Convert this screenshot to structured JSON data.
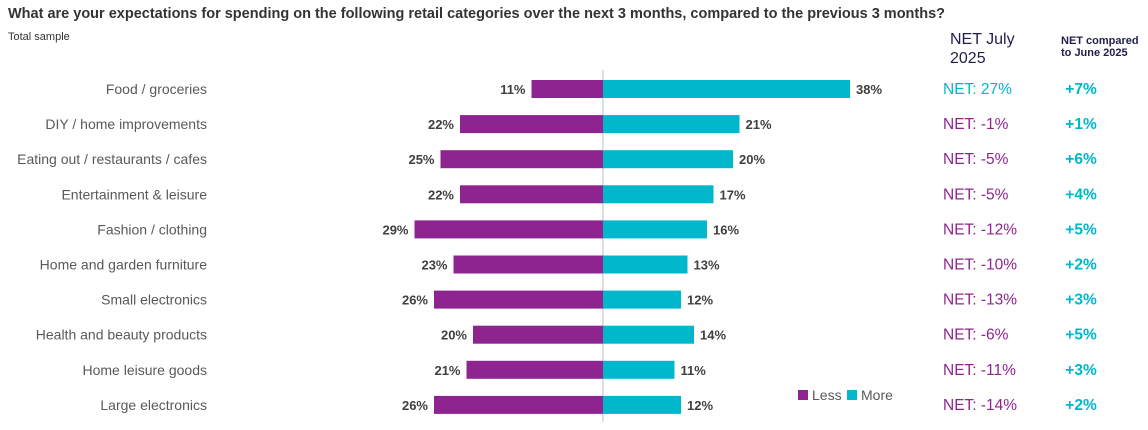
{
  "header": {
    "title": "What are your expectations for spending on the following retail categories over the next 3 months, compared to the previous 3 months?",
    "subtitle": "Total sample",
    "net_col_line1": "NET July",
    "net_col_line2": "2025",
    "cmp_col_line1": "NET compared",
    "cmp_col_line2": "to June 2025"
  },
  "colors": {
    "less": "#8e248f",
    "more": "#00b7cc",
    "net_positive": "#00b7cc",
    "net_negative": "#8e248f",
    "compare": "#00b7cc",
    "axis": "#bfbfbf"
  },
  "chart_data": {
    "type": "bar",
    "orientation": "horizontal-diverging",
    "categories": [
      "Food / groceries",
      "DIY / home improvements",
      "Eating out / restaurants / cafes",
      "Entertainment & leisure",
      "Fashion / clothing",
      "Home and garden furniture",
      "Small electronics",
      "Health and beauty products",
      "Home leisure goods",
      "Large electronics"
    ],
    "series": [
      {
        "name": "Less",
        "values": [
          11,
          22,
          25,
          22,
          29,
          23,
          26,
          20,
          21,
          26
        ],
        "labels": [
          "11%",
          "22%",
          "25%",
          "22%",
          "29%",
          "23%",
          "26%",
          "20%",
          "21%",
          "26%"
        ]
      },
      {
        "name": "More",
        "values": [
          38,
          21,
          20,
          17,
          16,
          13,
          12,
          14,
          11,
          12
        ],
        "labels": [
          "38%",
          "21%",
          "20%",
          "17%",
          "16%",
          "13%",
          "12%",
          "14%",
          "11%",
          "12%"
        ]
      }
    ],
    "net_july_2025": [
      27,
      -1,
      -5,
      -5,
      -12,
      -10,
      -13,
      -6,
      -11,
      -14
    ],
    "net_labels": [
      "NET: 27%",
      "NET: -1%",
      "NET: -5%",
      "NET: -5%",
      "NET: -12%",
      "NET: -10%",
      "NET: -13%",
      "NET: -6%",
      "NET: -11%",
      "NET: -14%"
    ],
    "net_change_vs_june_2025": [
      7,
      1,
      6,
      4,
      5,
      2,
      3,
      5,
      3,
      2
    ],
    "change_labels": [
      "+7%",
      "+1%",
      "+6%",
      "+4%",
      "+5%",
      "+2%",
      "+3%",
      "+5%",
      "+3%",
      "+2%"
    ],
    "legend": [
      "Less",
      "More"
    ],
    "legend_position": "bottom-right",
    "xlim": [
      -38,
      38
    ],
    "unit": "%"
  }
}
